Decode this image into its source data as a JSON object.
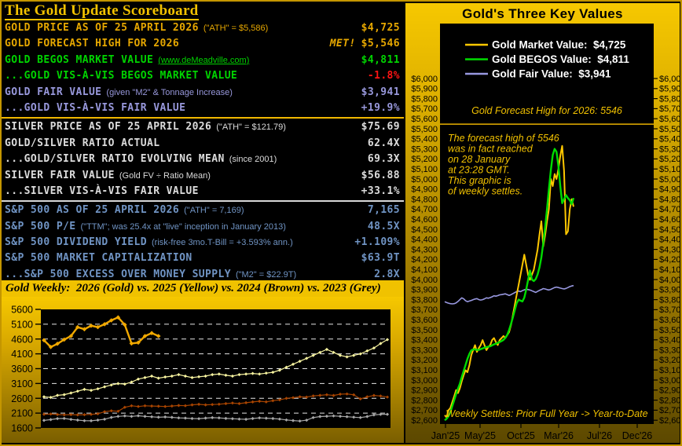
{
  "scoreboard": {
    "title": "The Gold Update Scoreboard",
    "rows": [
      {
        "label": "GOLD PRICE AS OF 25 APRIL 2026",
        "note": "(\"ATH\" = $5,586)",
        "value": "$4,725",
        "color": "gold"
      },
      {
        "label": "GOLD FORECAST HIGH FOR 2026",
        "note": "",
        "value_flag": "MET!",
        "value": "$5,546",
        "color": "gold"
      },
      {
        "label": "GOLD BEGOS MARKET VALUE",
        "note": "(www.deMeadville.com)",
        "note_is_link": true,
        "value": "$4,811",
        "color": "green"
      },
      {
        "label": "...GOLD VIS-À-VIS BEGOS MARKET VALUE",
        "note": "",
        "value": "-1.8%",
        "color": "green",
        "value_color": "red"
      },
      {
        "label": "GOLD FAIR VALUE",
        "note": "(given \"M2\" & Tonnage Increase)",
        "value": "$3,941",
        "color": "lav"
      },
      {
        "label": "...GOLD VIS-À-VIS FAIR VALUE",
        "note": "",
        "value": "+19.9%",
        "color": "lav",
        "divider_after": "gold"
      },
      {
        "label": "SILVER PRICE AS OF 25 APRIL 2026",
        "note": "(\"ATH\" = $121.79)",
        "value": "$75.69",
        "color": "silver"
      },
      {
        "label": "GOLD/SILVER RATIO ACTUAL",
        "note": "",
        "value": "62.4X",
        "color": "silver"
      },
      {
        "label": "...GOLD/SILVER RATIO EVOLVING MEAN",
        "note": "(since 2001)",
        "value": "69.3X",
        "color": "silver"
      },
      {
        "label": "SILVER FAIR VALUE",
        "note": "(Gold FV ÷ Ratio Mean)",
        "value": "$56.88",
        "color": "silver"
      },
      {
        "label": "...SILVER VIS-À-VIS FAIR VALUE",
        "note": "",
        "value": "+33.1%",
        "color": "silver",
        "divider_after": "silver"
      },
      {
        "label": "S&P 500 AS OF 25 APRIL 2026",
        "note": "(\"ATH\" = 7,169)",
        "value": "7,165",
        "color": "blue"
      },
      {
        "label": "S&P 500 P/E",
        "note": "(\"TTM\"; was 25.4x at \"live\" inception in January 2013)",
        "value": "48.5X",
        "color": "blue"
      },
      {
        "label": "S&P 500 DIVIDEND YIELD",
        "note": "(risk-free 3mo.T-Bill = +3.593% ann.)",
        "value": "+1.109%",
        "color": "blue"
      },
      {
        "label": "S&P 500 MARKET CAPITALIZATION",
        "note": "",
        "value": "$63.9T",
        "color": "blue"
      },
      {
        "label": "...S&P 500 EXCESS OVER MONEY SUPPLY",
        "note": "(\"M2\" = $22.9T)",
        "value": "2.8X",
        "color": "blue"
      }
    ]
  },
  "weekly_banner": "Gold Weekly:  2026 (Gold) vs. 2025 (Yellow) vs. 2024 (Brown) vs. 2023 (Grey)",
  "right_panel": {
    "title": "Gold's Three Key Values",
    "legend": [
      {
        "label": "Gold Market Value:",
        "value": "$4,725",
        "color": "#ffc800"
      },
      {
        "label": "Gold BEGOS Value:",
        "value": "$4,811",
        "color": "#00dc00"
      },
      {
        "label": "Gold Fair Value:",
        "value": "$3,941",
        "color": "#9898e0"
      }
    ],
    "forecast_note": "Gold Forecast High for 2026:  5546",
    "annotation_lines": [
      "The forecast high of 5546",
      "was in fact reached",
      "on 28 January",
      "at 23:28 GMT.",
      "This graphic is",
      "of weekly settles."
    ],
    "bottom_note": "Weekly Settles:  Prior Full Year -> Year-to-Date",
    "accent_color": "#f0c000"
  },
  "chart_data": [
    {
      "id": "gold-weekly",
      "type": "line",
      "title": "Gold Weekly: 2026 (Gold) vs. 2025 (Yellow) vs. 2024 (Brown) vs. 2023 (Grey)",
      "ylim": [
        1600,
        5600
      ],
      "yticks": [
        5600,
        5100,
        4600,
        4100,
        3600,
        3100,
        2600,
        2100,
        1600
      ],
      "gridlines": [
        5100,
        4600,
        4100,
        3600,
        3100,
        2600,
        2100
      ],
      "weeks": 52,
      "grid_color": "#ffffff",
      "series": [
        {
          "name": "2023 (Grey)",
          "color": "#a8a8a8",
          "width": 1.2,
          "marker": 2.1,
          "values": [
            1855,
            1880,
            1915,
            1920,
            1890,
            1865,
            1845,
            1840,
            1865,
            1895,
            1955,
            1990,
            2005,
            1990,
            2010,
            1990,
            1975,
            1960,
            1970,
            1958,
            1940,
            1930,
            1918,
            1912,
            1930,
            1948,
            1938,
            1920,
            1912,
            1900,
            1892,
            1918,
            1938,
            1928,
            1918,
            1900,
            1870,
            1848,
            1832,
            1862,
            1950,
            1985,
            1995,
            2005,
            1992,
            1980,
            1962,
            1950,
            1985,
            2040,
            2058,
            2060
          ]
        },
        {
          "name": "2024 (Brown)",
          "color": "#a84400",
          "width": 1.2,
          "marker": 2.1,
          "values": [
            2062,
            2068,
            2052,
            2042,
            2050,
            2040,
            2048,
            2058,
            2078,
            2148,
            2178,
            2162,
            2298,
            2348,
            2322,
            2348,
            2340,
            2332,
            2322,
            2340,
            2358,
            2350,
            2378,
            2398,
            2380,
            2390,
            2400,
            2420,
            2440,
            2420,
            2450,
            2478,
            2500,
            2480,
            2520,
            2548,
            2598,
            2620,
            2650,
            2640,
            2680,
            2700,
            2720,
            2698,
            2738,
            2748,
            2718,
            2580,
            2648,
            2698,
            2678,
            2642
          ]
        },
        {
          "name": "2025 (Yellow)",
          "color": "#f8f4a0",
          "width": 1.2,
          "marker": 2.1,
          "values": [
            2648,
            2630,
            2700,
            2722,
            2780,
            2840,
            2900,
            2870,
            2918,
            2988,
            3048,
            3098,
            3078,
            3148,
            3248,
            3298,
            3348,
            3280,
            3318,
            3348,
            3398,
            3348,
            3298,
            3328,
            3348,
            3398,
            3418,
            3378,
            3348,
            3398,
            3418,
            3438,
            3418,
            3448,
            3478,
            3548,
            3648,
            3748,
            3848,
            3948,
            4048,
            4148,
            4248,
            4148,
            4048,
            3998,
            4048,
            4098,
            4198,
            4298,
            4448,
            4580
          ]
        },
        {
          "name": "2026 (Gold)",
          "color": "#f0a800",
          "width": 2.4,
          "marker": 2.8,
          "values": [
            4560,
            4330,
            4440,
            4580,
            4700,
            5000,
            4930,
            5050,
            5000,
            5100,
            5230,
            5330,
            5080,
            4450,
            4480,
            4700,
            4800,
            4700
          ]
        }
      ]
    },
    {
      "id": "three-key-values",
      "type": "line",
      "title": "Gold's Three Key Values",
      "ytick_min": 2600,
      "ytick_max": 6000,
      "ytick_step": 100,
      "forecast_line_value": 5546,
      "xticks": [
        {
          "label": "Jan'25",
          "px": 7
        },
        {
          "label": "May'25",
          "px": 51
        },
        {
          "label": "Oct'25",
          "px": 103
        },
        {
          "label": "Mar'26",
          "px": 151
        },
        {
          "label": "Jul'26",
          "px": 203
        },
        {
          "label": "Dec'26",
          "px": 251
        }
      ],
      "series": [
        {
          "name": "Gold Fair Value",
          "color": "#9898e0",
          "width": 1.6,
          "values": [
            3780,
            3772,
            3765,
            3760,
            3758,
            3760,
            3768,
            3782,
            3800,
            3818,
            3808,
            3790,
            3780,
            3786,
            3792,
            3800,
            3806,
            3810,
            3800,
            3796,
            3800,
            3808,
            3818,
            3814,
            3820,
            3828,
            3838,
            3834,
            3840,
            3848,
            3850,
            3854,
            3858,
            3850,
            3842,
            3850,
            3860,
            3870,
            3880,
            3885,
            3880,
            3890,
            3898,
            3905,
            3900,
            3895,
            3888,
            3880,
            3872,
            3882,
            3892,
            3900,
            3910,
            3906,
            3900,
            3896,
            3902,
            3912,
            3920,
            3925,
            3920,
            3915,
            3910,
            3906,
            3912,
            3920,
            3930,
            3936,
            3940
          ]
        },
        {
          "name": "Gold Market Value",
          "color": "#ffc800",
          "width": 2,
          "values": [
            2650,
            2630,
            2700,
            2722,
            2780,
            2840,
            2900,
            2870,
            2918,
            2988,
            3048,
            3098,
            3078,
            3148,
            3248,
            3298,
            3348,
            3280,
            3318,
            3348,
            3398,
            3348,
            3298,
            3328,
            3348,
            3398,
            3418,
            3378,
            3348,
            3398,
            3418,
            3438,
            3418,
            3448,
            3478,
            3548,
            3648,
            3748,
            3848,
            3948,
            4048,
            4148,
            4248,
            4148,
            4048,
            3998,
            4048,
            4098,
            4198,
            4298,
            4448,
            4580,
            4330,
            4440,
            4580,
            4700,
            5000,
            4930,
            5050,
            5000,
            5100,
            5230,
            5330,
            5080,
            4450,
            4480,
            4700,
            4800,
            4725
          ]
        },
        {
          "name": "Gold BEGOS Value",
          "color": "#00dc00",
          "width": 2.4,
          "values": [
            2600,
            2615,
            2640,
            2680,
            2740,
            2800,
            2860,
            2915,
            2965,
            3030,
            3090,
            3150,
            3210,
            3260,
            3295,
            3305,
            3305,
            3300,
            3300,
            3308,
            3315,
            3322,
            3328,
            3332,
            3336,
            3345,
            3355,
            3362,
            3370,
            3378,
            3388,
            3400,
            3420,
            3450,
            3500,
            3560,
            3625,
            3695,
            3765,
            3800,
            3790,
            3782,
            3820,
            3900,
            3995,
            4090,
            4000,
            3985,
            4005,
            4050,
            4120,
            4220,
            4360,
            4520,
            4700,
            4900,
            5090,
            5240,
            5300,
            5270,
            5130,
            4930,
            4760,
            4800,
            4840,
            4810,
            4790,
            4750,
            4811
          ]
        }
      ]
    }
  ]
}
